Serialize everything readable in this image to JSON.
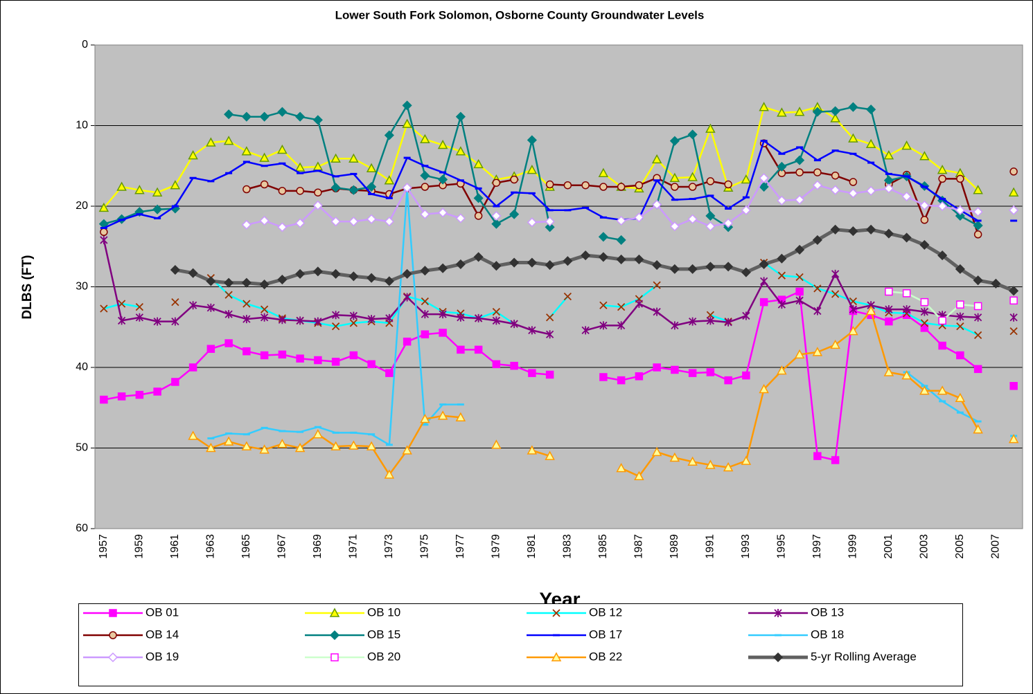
{
  "chart_data": {
    "type": "line",
    "title": "Lower South Fork Solomon, Osborne County Groundwater Levels",
    "x_label": "Year",
    "y_label": "DLBS (FT)",
    "categories": [
      "1957",
      null,
      "1959",
      null,
      "1961",
      null,
      "1963",
      null,
      "1965",
      null,
      "1967",
      null,
      "1969",
      null,
      "1971",
      null,
      "1973",
      null,
      "1975",
      null,
      "1977",
      null,
      "1979",
      null,
      "1981",
      null,
      "1983",
      null,
      "1985",
      null,
      "1987",
      null,
      "1989",
      null,
      "1991",
      null,
      "1993",
      null,
      "1995",
      null,
      "1997",
      null,
      "1999",
      null,
      "2001",
      null,
      "2003",
      null,
      "2005",
      null,
      "2007",
      null
    ],
    "ylim": [
      60,
      0
    ],
    "yticks": [
      0,
      10,
      20,
      30,
      40,
      50,
      60
    ],
    "grid": true,
    "legend": "bottom",
    "series": [
      {
        "name": "OB 01",
        "color": "#FF00FF",
        "marker": "square",
        "marker_color": "#FF00FF",
        "marker_fill": "#FF00FF",
        "line_width": 2.5,
        "values": [
          44,
          43.6,
          43.4,
          43,
          41.8,
          40,
          37.7,
          37,
          38,
          38.5,
          38.4,
          38.9,
          39.1,
          39.3,
          38.5,
          39.6,
          40.7,
          36.8,
          35.9,
          35.7,
          37.8,
          37.8,
          39.6,
          39.8,
          40.7,
          40.9,
          null,
          null,
          41.2,
          41.6,
          41.1,
          40,
          40.3,
          40.7,
          40.6,
          41.6,
          41,
          31.9,
          31.6,
          30.6,
          51,
          51.5,
          33,
          33.5,
          34.3,
          33.5,
          35.1,
          37.3,
          38.5,
          40.2,
          null,
          42.3
        ]
      },
      {
        "name": "OB 10",
        "color": "#FFFF00",
        "marker": "triangle",
        "marker_color": "#669900",
        "marker_fill": "#FFFF00",
        "line_width": 2.5,
        "values": [
          20.2,
          17.6,
          18,
          18.3,
          17.4,
          13.7,
          12.1,
          11.9,
          13.2,
          14,
          13,
          15.2,
          15.1,
          14.1,
          14.1,
          15.3,
          16.8,
          9.8,
          11.7,
          12.4,
          13.2,
          14.8,
          16.7,
          16.3,
          15.5,
          17.6,
          null,
          null,
          15.9,
          17.6,
          17.8,
          14.2,
          16.5,
          16.4,
          10.4,
          17.7,
          16.7,
          7.7,
          8.4,
          8.3,
          7.7,
          9.1,
          11.6,
          12.3,
          13.7,
          12.5,
          13.8,
          15.5,
          15.9,
          18,
          null,
          18.3
        ]
      },
      {
        "name": "OB 12",
        "color": "#00FFFF",
        "marker": "x",
        "marker_color": "#993300",
        "marker_fill": "none",
        "line_width": 2.5,
        "values": [
          32.7,
          32.1,
          32.5,
          null,
          31.9,
          null,
          28.9,
          31,
          32.1,
          32.8,
          33.9,
          34.2,
          34.5,
          34.9,
          34.5,
          34.3,
          34.5,
          31.2,
          31.8,
          33.1,
          33.3,
          33.9,
          33.1,
          34.6,
          null,
          33.8,
          31.2,
          null,
          32.3,
          32.5,
          31.5,
          29.8,
          null,
          null,
          33.5,
          34.3,
          null,
          27,
          28.6,
          28.8,
          30.2,
          30.9,
          31.8,
          32.3,
          33.2,
          33.3,
          34.5,
          34.8,
          34.9,
          36,
          null,
          35.5
        ]
      },
      {
        "name": "OB 13",
        "color": "#800080",
        "marker": "star",
        "marker_color": "#800080",
        "marker_fill": "none",
        "line_width": 2.5,
        "values": [
          24.2,
          34.2,
          33.8,
          34.3,
          34.3,
          32.3,
          32.6,
          33.4,
          34,
          33.8,
          34.1,
          34.2,
          34.3,
          33.5,
          33.6,
          34,
          33.9,
          31.3,
          33.4,
          33.4,
          33.8,
          33.9,
          34.2,
          34.6,
          35.4,
          35.9,
          null,
          35.4,
          34.8,
          34.8,
          32.1,
          33.1,
          34.8,
          34.3,
          34.2,
          34.4,
          33.6,
          29.3,
          32.2,
          31.7,
          33,
          28.4,
          32.8,
          32.3,
          32.8,
          32.8,
          33.1,
          33.5,
          33.7,
          33.8,
          null,
          33.8
        ]
      },
      {
        "name": "OB 14",
        "color": "#800000",
        "marker": "circle",
        "marker_color": "#800000",
        "marker_fill": "#E8C8A0",
        "line_width": 2.5,
        "values": [
          23.2,
          null,
          null,
          null,
          null,
          null,
          null,
          null,
          17.9,
          17.3,
          18.1,
          18.1,
          18.3,
          17.8,
          18,
          18.1,
          18.5,
          17.8,
          17.6,
          17.4,
          17.2,
          21.2,
          17.1,
          16.7,
          null,
          17.3,
          17.4,
          17.4,
          17.6,
          17.6,
          17.4,
          16.5,
          17.6,
          17.6,
          16.9,
          17.3,
          null,
          12.2,
          15.9,
          15.8,
          15.8,
          16.2,
          17,
          null,
          17.3,
          16.1,
          21.7,
          16.6,
          16.6,
          23.5,
          null,
          15.7
        ]
      },
      {
        "name": "OB 15",
        "color": "#008080",
        "marker": "diamond",
        "marker_color": "#008080",
        "marker_fill": "#008080",
        "line_width": 2.5,
        "values": [
          22.2,
          21.6,
          20.7,
          20.4,
          20.3,
          null,
          null,
          8.6,
          8.9,
          8.9,
          8.3,
          8.9,
          9.3,
          17.7,
          18,
          17.6,
          11.2,
          7.5,
          16.2,
          16.7,
          8.9,
          19,
          22.2,
          21,
          11.8,
          22.6,
          null,
          null,
          23.8,
          24.2,
          null,
          19.8,
          11.9,
          11.1,
          21.2,
          22.6,
          null,
          17.6,
          15.1,
          14.3,
          8.3,
          8.2,
          7.7,
          8,
          16.8,
          16.3,
          17.5,
          19.3,
          21.2,
          22.4,
          null,
          null
        ]
      },
      {
        "name": "OB 17",
        "color": "#0000FF",
        "marker": "dash",
        "marker_color": "#0000FF",
        "marker_fill": "#0000FF",
        "line_width": 2.5,
        "values": [
          22.7,
          21.7,
          21,
          21.5,
          20,
          16.5,
          16.9,
          15.9,
          14.5,
          15,
          14.7,
          15.9,
          15.6,
          16.3,
          16,
          18.5,
          19,
          14,
          15,
          15.8,
          16.8,
          17.8,
          20,
          18.3,
          18.4,
          20.5,
          20.5,
          20.2,
          21.4,
          21.7,
          21.5,
          16.8,
          19.2,
          19.1,
          18.7,
          20.3,
          18.9,
          11.9,
          13.5,
          12.7,
          14.3,
          13.1,
          13.5,
          14.6,
          16,
          16.3,
          17.6,
          19.1,
          20.5,
          21.8,
          null,
          21.8
        ]
      },
      {
        "name": "OB 18",
        "color": "#33CCFF",
        "marker": "dash",
        "marker_color": "#33CCFF",
        "marker_fill": "#33CCFF",
        "line_width": 2.5,
        "values": [
          null,
          null,
          null,
          null,
          null,
          null,
          48.8,
          48.2,
          48.3,
          47.5,
          47.9,
          48,
          47.4,
          48.1,
          48.1,
          48.3,
          49.6,
          18,
          47.1,
          44.6,
          44.6,
          null,
          null,
          null,
          null,
          null,
          null,
          null,
          null,
          null,
          null,
          null,
          null,
          null,
          null,
          null,
          null,
          null,
          null,
          null,
          null,
          null,
          null,
          null,
          null,
          40.6,
          42.3,
          44.2,
          45.6,
          46.7,
          null,
          48.5
        ]
      },
      {
        "name": "OB 19",
        "color": "#CC99FF",
        "marker": "diamond",
        "marker_color": "#CC99FF",
        "marker_fill": "#FFFFFF",
        "line_width": 2.5,
        "values": [
          null,
          null,
          null,
          null,
          null,
          null,
          null,
          null,
          22.3,
          21.8,
          22.6,
          22.1,
          19.9,
          21.9,
          21.9,
          21.6,
          21.9,
          17.7,
          21,
          20.8,
          21.5,
          null,
          21.2,
          null,
          22,
          21.9,
          null,
          null,
          null,
          21.8,
          21.4,
          19.8,
          22.5,
          21.6,
          22.5,
          22.1,
          20.5,
          16.5,
          19.3,
          19.2,
          17.4,
          18,
          18.4,
          18.1,
          17.8,
          18.8,
          19.9,
          20,
          20.5,
          20.7,
          null,
          20.5
        ]
      },
      {
        "name": "OB 20",
        "color": "#CCFFCC",
        "marker": "square",
        "marker_color": "#FF00FF",
        "marker_fill": "#FFFFFF",
        "line_width": 2.5,
        "values": [
          null,
          null,
          null,
          null,
          null,
          null,
          null,
          null,
          null,
          null,
          null,
          null,
          null,
          null,
          null,
          null,
          null,
          null,
          null,
          null,
          null,
          null,
          null,
          null,
          null,
          null,
          null,
          null,
          null,
          null,
          null,
          null,
          null,
          null,
          null,
          null,
          null,
          null,
          null,
          null,
          null,
          null,
          null,
          null,
          30.6,
          30.8,
          31.9,
          34.2,
          32.2,
          32.4,
          null,
          31.7
        ]
      },
      {
        "name": "OB 22",
        "color": "#FF9900",
        "marker": "triangle",
        "marker_color": "#FF9900",
        "marker_fill": "#FFFF99",
        "line_width": 2.5,
        "values": [
          null,
          null,
          null,
          null,
          null,
          48.5,
          50,
          49.2,
          49.8,
          50.2,
          49.5,
          50,
          48.3,
          49.8,
          49.7,
          49.8,
          53.3,
          50.3,
          46.4,
          46,
          46.2,
          null,
          49.6,
          null,
          50.3,
          51,
          null,
          null,
          null,
          52.5,
          53.5,
          50.5,
          51.2,
          51.7,
          52.1,
          52.4,
          51.6,
          42.7,
          40.4,
          38.4,
          38.1,
          37.2,
          35.5,
          33,
          40.6,
          41,
          42.9,
          42.9,
          43.8,
          47.7,
          null,
          48.9
        ]
      },
      {
        "name": "5-yr Rolling Average",
        "color": "#606060",
        "marker": "diamond",
        "marker_color": "#333333",
        "marker_fill": "#333333",
        "line_width": 5,
        "values": [
          null,
          null,
          null,
          null,
          27.9,
          28.3,
          29.3,
          29.5,
          29.5,
          29.7,
          29.1,
          28.4,
          28.1,
          28.4,
          28.7,
          28.9,
          29.3,
          28.4,
          28,
          27.7,
          27.2,
          26.3,
          27.4,
          27,
          27,
          27.3,
          26.8,
          26.1,
          26.3,
          26.6,
          26.6,
          27.3,
          27.8,
          27.8,
          27.5,
          27.5,
          28.2,
          27.2,
          26.5,
          25.4,
          24.2,
          22.9,
          23.1,
          22.9,
          23.4,
          23.9,
          24.8,
          26.1,
          27.8,
          29.2,
          29.6,
          30.5
        ]
      }
    ]
  }
}
